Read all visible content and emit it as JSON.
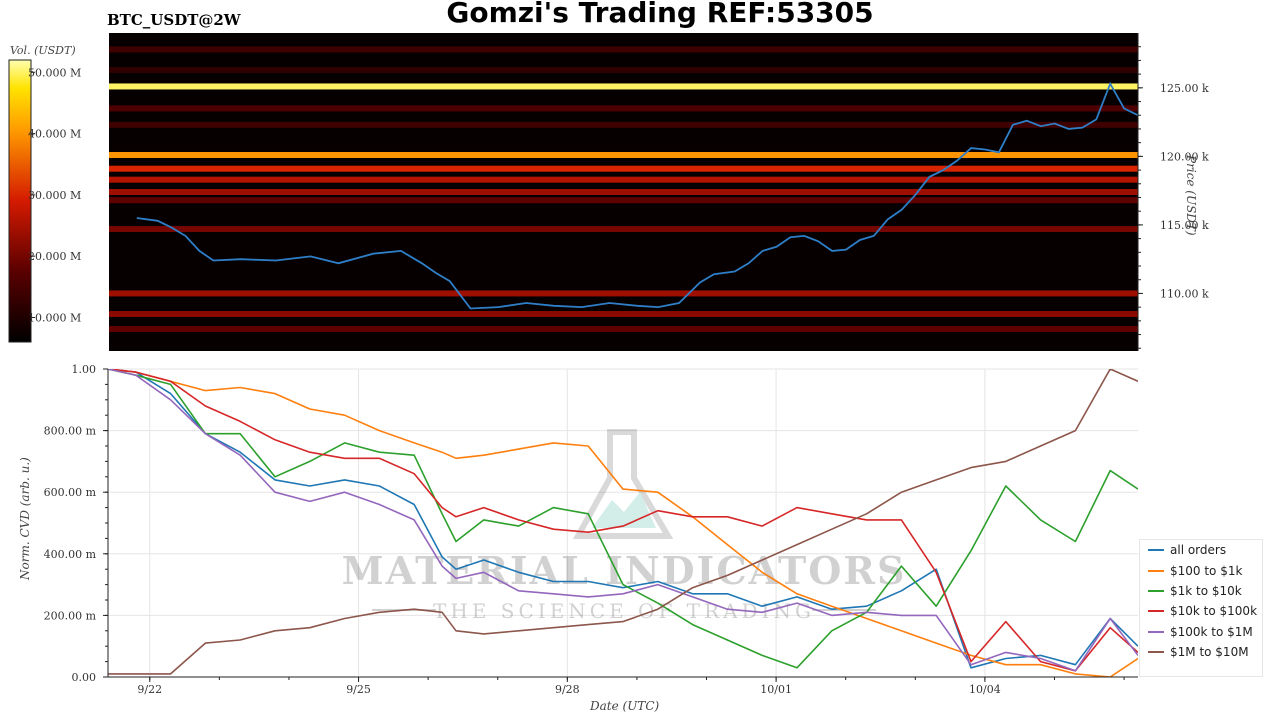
{
  "header": {
    "title": "Gomzi's Trading REF:53305",
    "pair": "BTC_USDT@2W"
  },
  "chart_data": [
    {
      "type": "heatmap",
      "title": "",
      "colorbar_label": "Vol. (USDT)",
      "colorbar_ticks": [
        "50.000 M",
        "40.000 M",
        "30.000 M",
        "20.000 M",
        "10.000 M"
      ],
      "colorbar_values": [
        50,
        40,
        30,
        20,
        10
      ],
      "colorbar_range": [
        6,
        52
      ],
      "ylabel": "Price (USDT)",
      "ylim": [
        105800,
        129000
      ],
      "y_ticks": [
        "125.00 k",
        "120.00 k",
        "115.00 k",
        "110.00 k"
      ],
      "y_tick_values": [
        125000,
        120000,
        115000,
        110000
      ],
      "xlim": [
        -0.4,
        14.4
      ],
      "price_line": {
        "x": [
          0,
          0.3,
          0.5,
          0.7,
          0.9,
          1.1,
          1.5,
          2,
          2.5,
          2.9,
          3.4,
          3.8,
          4.1,
          4.3,
          4.5,
          4.8,
          5.2,
          5.6,
          6,
          6.4,
          6.8,
          7.2,
          7.5,
          7.8,
          8.1,
          8.3,
          8.6,
          8.8,
          9,
          9.2,
          9.4,
          9.6,
          9.8,
          10,
          10.2,
          10.4,
          10.6,
          10.8,
          11,
          11.2,
          11.4,
          11.6,
          11.8,
          12,
          12.2,
          12.4,
          12.6,
          12.8,
          13,
          13.2,
          13.4,
          13.6,
          13.8,
          14,
          14.2,
          14.4
        ],
        "y": [
          115500,
          115300,
          114800,
          114200,
          113100,
          112400,
          112500,
          112400,
          112700,
          112200,
          112900,
          113100,
          112200,
          111500,
          110900,
          108900,
          109000,
          109300,
          109100,
          109000,
          109300,
          109100,
          109000,
          109300,
          110800,
          111400,
          111600,
          112200,
          113100,
          113400,
          114100,
          114200,
          113800,
          113100,
          113200,
          113900,
          114200,
          115400,
          116100,
          117200,
          118500,
          119000,
          119700,
          120600,
          120500,
          120300,
          122300,
          122600,
          122200,
          122400,
          122000,
          122100,
          122700,
          125300,
          123500,
          123000
        ]
      },
      "bands": [
        {
          "price": 125100,
          "level": 50
        },
        {
          "price": 120100,
          "level": 40
        },
        {
          "price": 119100,
          "level": 30
        },
        {
          "price": 118300,
          "level": 26
        },
        {
          "price": 117400,
          "level": 24
        },
        {
          "price": 116800,
          "level": 18
        },
        {
          "price": 114700,
          "level": 20
        },
        {
          "price": 110000,
          "level": 24
        },
        {
          "price": 108500,
          "level": 22
        },
        {
          "price": 107400,
          "level": 18
        },
        {
          "price": 127800,
          "level": 14
        },
        {
          "price": 123500,
          "level": 16
        },
        {
          "price": 122300,
          "level": 14
        },
        {
          "price": 126300,
          "level": 12
        }
      ]
    },
    {
      "type": "line",
      "title": "",
      "xlabel": "Date (UTC)",
      "ylabel": "Norm. CVD (arb. u.)",
      "ylim": [
        0,
        1
      ],
      "xlim": [
        -0.4,
        14.4
      ],
      "y_ticks": [
        "1.00",
        "800.00 m",
        "600.00 m",
        "400.00 m",
        "200.00 m",
        "0.00"
      ],
      "y_tick_values": [
        1.0,
        0.8,
        0.6,
        0.4,
        0.2,
        0.0
      ],
      "x_ticks": [
        "9/22",
        "9/25",
        "9/28",
        "10/01",
        "10/04"
      ],
      "x_tick_values": [
        0.2,
        3.2,
        6.2,
        9.2,
        12.2
      ],
      "grid": true,
      "legend_position": "right",
      "x": [
        -0.4,
        0.0,
        0.5,
        1.0,
        1.5,
        2.0,
        2.5,
        3.0,
        3.5,
        4.0,
        4.4,
        4.6,
        5.0,
        5.5,
        6.0,
        6.5,
        7.0,
        7.5,
        8.0,
        8.5,
        9.0,
        9.5,
        10.0,
        10.5,
        11.0,
        11.5,
        12.0,
        12.5,
        13.0,
        13.5,
        14.0,
        14.4
      ],
      "series": [
        {
          "name": "all orders",
          "color": "#1f77b4",
          "values": [
            1.0,
            0.99,
            0.92,
            0.79,
            0.73,
            0.64,
            0.62,
            0.64,
            0.62,
            0.56,
            0.39,
            0.35,
            0.38,
            0.34,
            0.31,
            0.31,
            0.29,
            0.31,
            0.27,
            0.27,
            0.23,
            0.26,
            0.22,
            0.23,
            0.28,
            0.35,
            0.03,
            0.06,
            0.07,
            0.04,
            0.19,
            0.1
          ]
        },
        {
          "name": "$100 to $1k",
          "color": "#ff7f0e",
          "values": [
            1.0,
            0.99,
            0.96,
            0.93,
            0.94,
            0.92,
            0.87,
            0.85,
            0.8,
            0.76,
            0.73,
            0.71,
            0.72,
            0.74,
            0.76,
            0.75,
            0.61,
            0.6,
            0.52,
            0.43,
            0.34,
            0.27,
            0.23,
            0.19,
            0.15,
            0.11,
            0.07,
            0.04,
            0.04,
            0.01,
            0.0,
            0.06
          ]
        },
        {
          "name": "$1k to $10k",
          "color": "#2ca02c",
          "values": [
            1.0,
            0.98,
            0.95,
            0.79,
            0.79,
            0.65,
            0.7,
            0.76,
            0.73,
            0.72,
            0.53,
            0.44,
            0.51,
            0.49,
            0.55,
            0.53,
            0.3,
            0.24,
            0.17,
            0.12,
            0.07,
            0.03,
            0.15,
            0.21,
            0.36,
            0.23,
            0.41,
            0.62,
            0.51,
            0.44,
            0.67,
            0.61
          ]
        },
        {
          "name": "$10k to $100k",
          "color": "#d62728",
          "values": [
            1.0,
            0.99,
            0.96,
            0.88,
            0.83,
            0.77,
            0.73,
            0.71,
            0.71,
            0.66,
            0.55,
            0.52,
            0.55,
            0.51,
            0.48,
            0.47,
            0.49,
            0.54,
            0.52,
            0.52,
            0.49,
            0.55,
            0.53,
            0.51,
            0.51,
            0.34,
            0.05,
            0.18,
            0.05,
            0.02,
            0.16,
            0.08
          ]
        },
        {
          "name": "$100k to $1M",
          "color": "#9467bd",
          "values": [
            1.0,
            0.98,
            0.9,
            0.79,
            0.72,
            0.6,
            0.57,
            0.6,
            0.56,
            0.51,
            0.36,
            0.32,
            0.34,
            0.28,
            0.27,
            0.26,
            0.27,
            0.3,
            0.26,
            0.22,
            0.21,
            0.24,
            0.2,
            0.21,
            0.2,
            0.2,
            0.04,
            0.08,
            0.06,
            0.02,
            0.19,
            0.07
          ]
        },
        {
          "name": "$1M to $10M",
          "color": "#8c564b",
          "values": [
            0.01,
            0.01,
            0.01,
            0.11,
            0.12,
            0.15,
            0.16,
            0.19,
            0.21,
            0.22,
            0.21,
            0.15,
            0.14,
            0.15,
            0.16,
            0.17,
            0.18,
            0.22,
            0.29,
            0.33,
            0.38,
            0.43,
            0.48,
            0.53,
            0.6,
            0.64,
            0.68,
            0.7,
            0.75,
            0.8,
            1.0,
            0.96
          ]
        }
      ]
    }
  ],
  "watermark": {
    "brand": "MATERIAL INDICATORS",
    "tagline": "THE SCIENCE OF TRADING"
  },
  "legend_title": ""
}
